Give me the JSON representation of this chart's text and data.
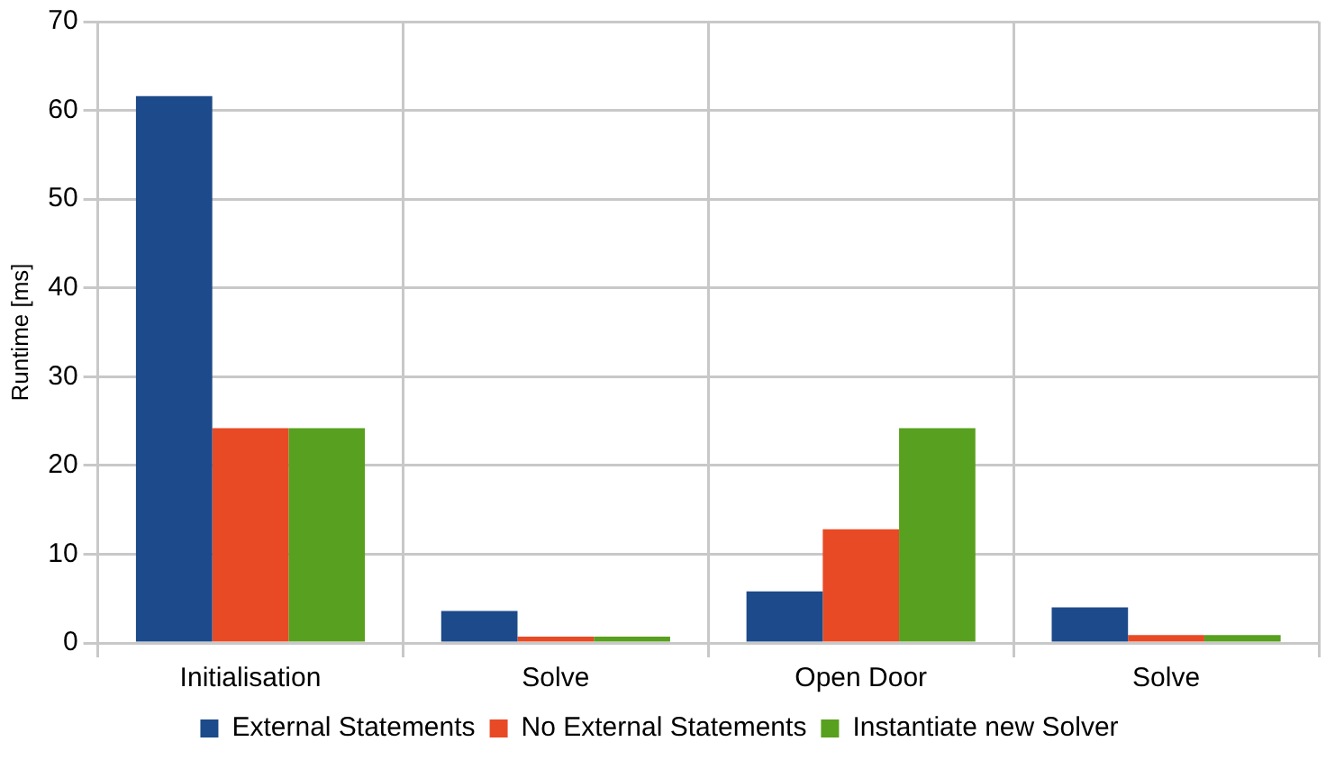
{
  "chart_data": {
    "type": "bar",
    "ylabel": "Runtime [ms]",
    "categories": [
      "Initialisation",
      "Solve",
      "Open Door",
      "Solve"
    ],
    "series": [
      {
        "name": "External Statements",
        "color": "#1c4a8b",
        "values": [
          61.6,
          3.6,
          5.8,
          4.0
        ]
      },
      {
        "name": "No External Statements",
        "color": "#e84a25",
        "values": [
          24.2,
          0.7,
          12.8,
          0.9
        ]
      },
      {
        "name": "Instantiate new Solver",
        "color": "#58a01f",
        "values": [
          24.2,
          0.7,
          24.2,
          0.9
        ]
      }
    ],
    "ylim": [
      0,
      70
    ],
    "yticks": [
      0,
      10,
      20,
      30,
      40,
      50,
      60,
      70
    ],
    "grid": true,
    "legend": "bottom"
  }
}
